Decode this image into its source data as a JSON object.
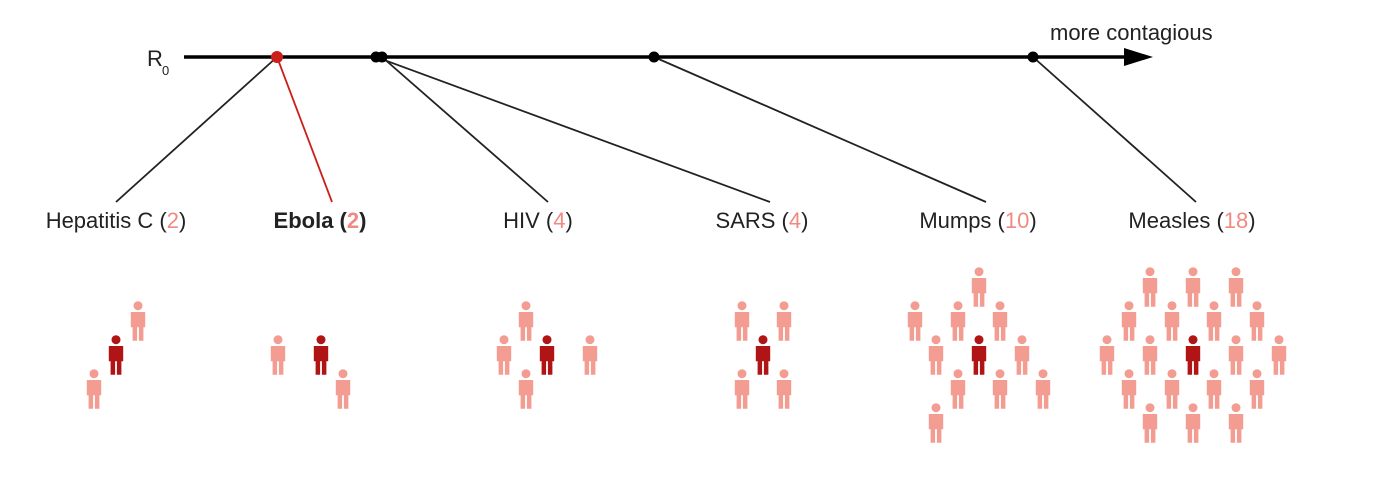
{
  "axis": {
    "label_main": "R",
    "label_sub": "0",
    "direction_label": "more contagious"
  },
  "colors": {
    "axis": "#000000",
    "connector": "#222222",
    "highlight": "#cc1f1a",
    "number": "#f08a80",
    "person_infected": "#b01414",
    "person_contact": "#f29c92"
  },
  "icons": {
    "person": "person-icon",
    "arrow": "arrow-head-icon"
  },
  "diseases": [
    {
      "name": "Hepatitis C",
      "r0": 2,
      "r0_text": "2",
      "highlight": false
    },
    {
      "name": "Ebola",
      "r0": 2,
      "r0_text": "2",
      "highlight": true
    },
    {
      "name": "HIV",
      "r0": 4,
      "r0_text": "4",
      "highlight": false
    },
    {
      "name": "SARS",
      "r0": 4,
      "r0_text": "4",
      "highlight": false
    },
    {
      "name": "Mumps",
      "r0": 10,
      "r0_text": "10",
      "highlight": false
    },
    {
      "name": "Measles",
      "r0": 18,
      "r0_text": "18",
      "highlight": false
    }
  ],
  "punctuation": {
    "open": "(",
    "close": ")"
  }
}
